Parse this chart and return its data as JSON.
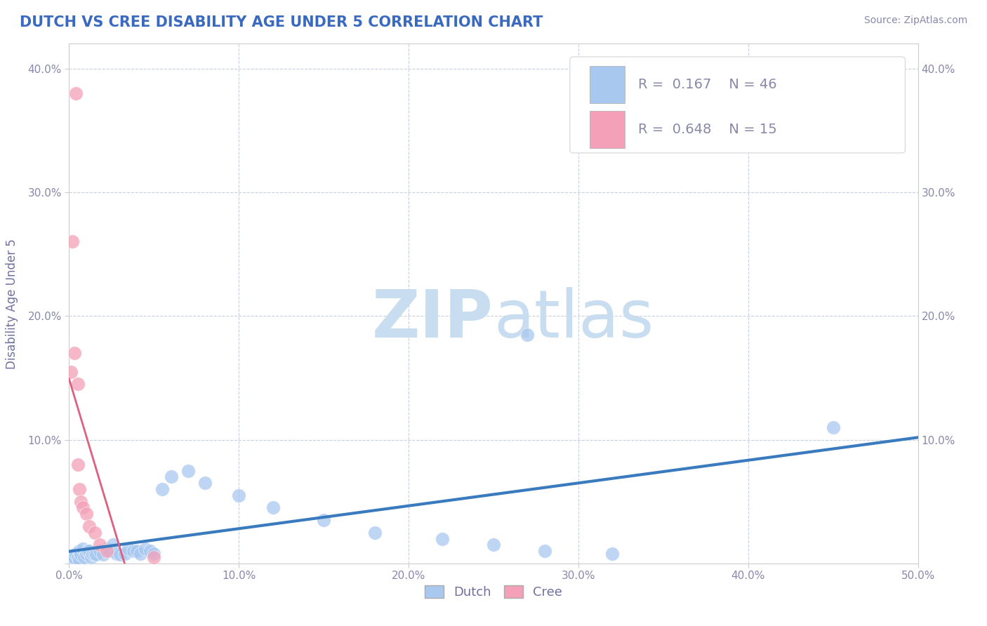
{
  "title": "DUTCH VS CREE DISABILITY AGE UNDER 5 CORRELATION CHART",
  "source_text": "Source: ZipAtlas.com",
  "ylabel": "Disability Age Under 5",
  "xlim": [
    0.0,
    0.5
  ],
  "ylim": [
    0.0,
    0.42
  ],
  "xticks": [
    0.0,
    0.1,
    0.2,
    0.3,
    0.4,
    0.5
  ],
  "yticks": [
    0.0,
    0.1,
    0.2,
    0.3,
    0.4
  ],
  "xtick_labels": [
    "0.0%",
    "10.0%",
    "20.0%",
    "30.0%",
    "40.0%",
    "50.0%"
  ],
  "dutch_R": 0.167,
  "dutch_N": 46,
  "cree_R": 0.648,
  "cree_N": 15,
  "dutch_color": "#a8c8f0",
  "cree_color": "#f4a0b8",
  "dutch_line_color": "#3a7abf",
  "cree_line_color": "#e06080",
  "watermark_zip": "ZIP",
  "watermark_atlas": "atlas",
  "watermark_color": "#c8ddf0",
  "title_color": "#3a6abf",
  "axis_label_color": "#7070a0",
  "tick_color": "#8888aa",
  "grid_color": "#c8d0e0",
  "dutch_x": [
    0.001,
    0.002,
    0.003,
    0.004,
    0.005,
    0.006,
    0.006,
    0.007,
    0.008,
    0.009,
    0.01,
    0.011,
    0.012,
    0.013,
    0.014,
    0.015,
    0.016,
    0.018,
    0.02,
    0.022,
    0.024,
    0.026,
    0.028,
    0.03,
    0.033,
    0.035,
    0.038,
    0.04,
    0.042,
    0.045,
    0.048,
    0.05,
    0.055,
    0.06,
    0.07,
    0.08,
    0.1,
    0.12,
    0.15,
    0.18,
    0.22,
    0.25,
    0.28,
    0.32,
    0.45,
    0.27
  ],
  "dutch_y": [
    0.003,
    0.005,
    0.005,
    0.008,
    0.005,
    0.003,
    0.01,
    0.007,
    0.012,
    0.005,
    0.008,
    0.01,
    0.01,
    0.005,
    0.008,
    0.008,
    0.007,
    0.01,
    0.007,
    0.012,
    0.01,
    0.015,
    0.008,
    0.007,
    0.008,
    0.012,
    0.01,
    0.01,
    0.008,
    0.012,
    0.01,
    0.008,
    0.06,
    0.07,
    0.075,
    0.065,
    0.055,
    0.045,
    0.035,
    0.025,
    0.02,
    0.015,
    0.01,
    0.008,
    0.11,
    0.185
  ],
  "cree_x": [
    0.001,
    0.002,
    0.003,
    0.004,
    0.005,
    0.005,
    0.006,
    0.007,
    0.008,
    0.01,
    0.012,
    0.015,
    0.018,
    0.022,
    0.05
  ],
  "cree_y": [
    0.155,
    0.26,
    0.17,
    0.38,
    0.145,
    0.08,
    0.06,
    0.05,
    0.045,
    0.04,
    0.03,
    0.025,
    0.015,
    0.01,
    0.005
  ],
  "background_color": "#ffffff",
  "fig_width": 14.06,
  "fig_height": 8.92
}
